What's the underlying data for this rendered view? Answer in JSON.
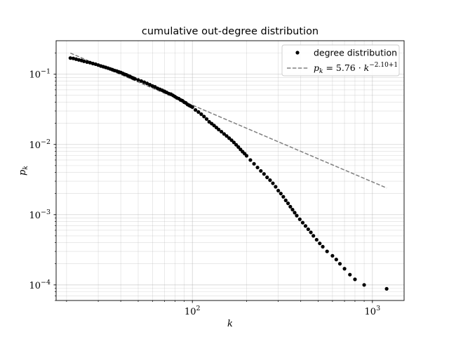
{
  "chart_data": {
    "type": "scatter",
    "title": "cumulative out-degree distribution",
    "xlabel": "k",
    "ylabel": "p_k",
    "xscale": "log",
    "yscale": "log",
    "xlim": [
      17.5,
      1500
    ],
    "ylim": [
      6e-05,
      0.3
    ],
    "grid": true,
    "legend_position": "top-right",
    "x_ticks": [
      {
        "base": "10",
        "exp": "2",
        "value": 100
      },
      {
        "base": "10",
        "exp": "3",
        "value": 1000
      }
    ],
    "y_ticks": [
      {
        "base": "10",
        "exp": "−1",
        "value": 0.1
      },
      {
        "base": "10",
        "exp": "−2",
        "value": 0.01
      },
      {
        "base": "10",
        "exp": "−3",
        "value": 0.001
      },
      {
        "base": "10",
        "exp": "−4",
        "value": 0.0001
      }
    ],
    "series": [
      {
        "name": "degree distribution",
        "style": "markers",
        "color": "#000000",
        "x": [
          21,
          21.8,
          22.6,
          23.4,
          24.2,
          25,
          26,
          27,
          28,
          29,
          30,
          31,
          32,
          33,
          34,
          35,
          36,
          37,
          38,
          39,
          40,
          41,
          42,
          43,
          44,
          45,
          46,
          47,
          48,
          50,
          52,
          54,
          56,
          58,
          60,
          62,
          64,
          66,
          68,
          70,
          72,
          74,
          76,
          78,
          80,
          82,
          84,
          86,
          88,
          90,
          92,
          94,
          96,
          98,
          100,
          104,
          108,
          112,
          116,
          120,
          124,
          128,
          132,
          136,
          140,
          145,
          150,
          155,
          160,
          165,
          170,
          175,
          180,
          185,
          190,
          195,
          200,
          210,
          220,
          230,
          240,
          250,
          260,
          270,
          280,
          290,
          300,
          310,
          320,
          330,
          340,
          350,
          360,
          370,
          380,
          395,
          410,
          425,
          440,
          455,
          470,
          490,
          510,
          530,
          560,
          600,
          630,
          660,
          700,
          750,
          800,
          900,
          1200
        ],
        "y": [
          0.17,
          0.168,
          0.164,
          0.16,
          0.157,
          0.153,
          0.149,
          0.146,
          0.142,
          0.139,
          0.135,
          0.131,
          0.128,
          0.125,
          0.122,
          0.119,
          0.116,
          0.113,
          0.111,
          0.108,
          0.106,
          0.103,
          0.1,
          0.098,
          0.095,
          0.093,
          0.09,
          0.088,
          0.086,
          0.083,
          0.08,
          0.077,
          0.074,
          0.071,
          0.068,
          0.066,
          0.063,
          0.061,
          0.059,
          0.057,
          0.055,
          0.053,
          0.052,
          0.05,
          0.048,
          0.046,
          0.045,
          0.043,
          0.042,
          0.04,
          0.039,
          0.037,
          0.036,
          0.035,
          0.034,
          0.031,
          0.029,
          0.027,
          0.025,
          0.023,
          0.021,
          0.0198,
          0.0186,
          0.0174,
          0.0163,
          0.0152,
          0.0141,
          0.0132,
          0.0123,
          0.0115,
          0.0107,
          0.0099,
          0.0092,
          0.0085,
          0.0079,
          0.0074,
          0.0069,
          0.006,
          0.0053,
          0.0047,
          0.0042,
          0.0038,
          0.0034,
          0.0031,
          0.0028,
          0.0025,
          0.0022,
          0.002,
          0.0018,
          0.0016,
          0.00145,
          0.0013,
          0.00118,
          0.00107,
          0.00097,
          0.00086,
          0.00077,
          0.00069,
          0.00062,
          0.00056,
          0.0005,
          0.00044,
          0.00039,
          0.00035,
          0.0003,
          0.00026,
          0.00023,
          0.0002,
          0.00017,
          0.00014,
          0.00012,
          0.0001,
          8.8e-05
        ]
      },
      {
        "name": "p_k = 5.76 · k^(−2.10+1)",
        "style": "dashed-line",
        "color": "#808080",
        "x": [
          21,
          1200
        ],
        "y": [
          0.2,
          0.0024
        ]
      }
    ]
  },
  "legend": {
    "items": [
      {
        "label": "degree distribution"
      },
      {
        "label_prefix": "p",
        "label_sub": "k",
        "label_mid": " = 5.76 · ",
        "label_base": "k",
        "label_sup": "−2.10+1"
      }
    ]
  }
}
